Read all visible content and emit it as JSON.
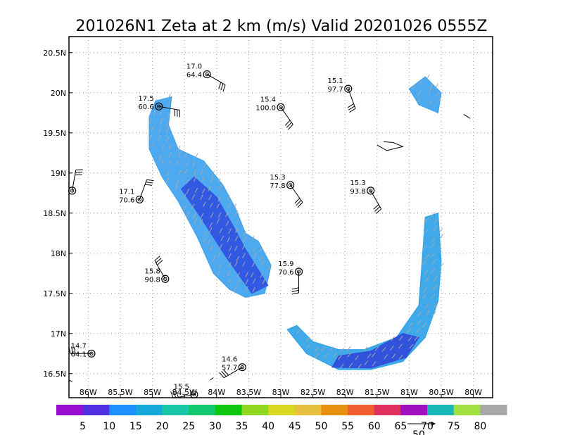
{
  "chart_data": {
    "type": "map",
    "title": "201026N1 Zeta at 2 km (m/s) Valid 20201026 0555Z",
    "xlim": [
      -86.3,
      -79.7
    ],
    "ylim": [
      16.2,
      20.7
    ],
    "x_ticks": [
      {
        "value": -86.0,
        "label": "86W"
      },
      {
        "value": -85.5,
        "label": "85.5W"
      },
      {
        "value": -85.0,
        "label": "85W"
      },
      {
        "value": -84.5,
        "label": "84.5W"
      },
      {
        "value": -84.0,
        "label": "84W"
      },
      {
        "value": -83.5,
        "label": "83.5W"
      },
      {
        "value": -83.0,
        "label": "83W"
      },
      {
        "value": -82.5,
        "label": "82.5W"
      },
      {
        "value": -82.0,
        "label": "82W"
      },
      {
        "value": -81.5,
        "label": "81.5W"
      },
      {
        "value": -81.0,
        "label": "81W"
      },
      {
        "value": -80.5,
        "label": "80.5W"
      },
      {
        "value": -80.0,
        "label": "80W"
      }
    ],
    "y_ticks": [
      {
        "value": 16.5,
        "label": "16.5N"
      },
      {
        "value": 17.0,
        "label": "17N"
      },
      {
        "value": 17.5,
        "label": "17.5N"
      },
      {
        "value": 18.0,
        "label": "18N"
      },
      {
        "value": 18.5,
        "label": "18.5N"
      },
      {
        "value": 19.0,
        "label": "19N"
      },
      {
        "value": 19.5,
        "label": "19.5N"
      },
      {
        "value": 20.0,
        "label": "20N"
      },
      {
        "value": 20.5,
        "label": "20.5N"
      }
    ],
    "grid": true,
    "colorbar": {
      "labels": [
        "5",
        "10",
        "15",
        "20",
        "25",
        "30",
        "35",
        "40",
        "45",
        "50",
        "55",
        "60",
        "65",
        "70",
        "75",
        "80"
      ],
      "colors": [
        "#9a0ed0",
        "#5030e0",
        "#1e8fff",
        "#16a8d8",
        "#18c8a8",
        "#10c870",
        "#10c810",
        "#90d820",
        "#d8d820",
        "#e8c040",
        "#e89010",
        "#f06030",
        "#e03060",
        "#a010c0",
        "#18b8b8",
        "#a0e040",
        "#a8a8a8"
      ],
      "reference_vector": {
        "label": "50"
      }
    },
    "stations": [
      {
        "lon": -84.15,
        "lat": 20.23,
        "top": "17.0",
        "bottom": "64.4",
        "barb_dir": 120
      },
      {
        "lon": -84.9,
        "lat": 19.83,
        "top": "17.5",
        "bottom": "60.6",
        "barb_dir": 100
      },
      {
        "lon": -83.0,
        "lat": 19.82,
        "top": "15.4",
        "bottom": "100.0",
        "barb_dir": 145
      },
      {
        "lon": -81.95,
        "lat": 20.05,
        "top": "15.1",
        "bottom": "97.7",
        "barb_dir": 160
      },
      {
        "lon": -86.25,
        "lat": 18.78,
        "top": "",
        "bottom": "",
        "barb_dir": 10
      },
      {
        "lon": -85.2,
        "lat": 18.67,
        "top": "17.1",
        "bottom": "70.6",
        "barb_dir": 20
      },
      {
        "lon": -82.85,
        "lat": 18.85,
        "top": "15.3",
        "bottom": "77.8",
        "barb_dir": 145
      },
      {
        "lon": -81.6,
        "lat": 18.78,
        "top": "15.3",
        "bottom": "93.8",
        "barb_dir": 150
      },
      {
        "lon": -84.8,
        "lat": 17.68,
        "top": "15.8",
        "bottom": "90.8",
        "barb_dir": 330
      },
      {
        "lon": -82.72,
        "lat": 17.77,
        "top": "15.9",
        "bottom": "70.6",
        "barb_dir": 180
      },
      {
        "lon": -85.95,
        "lat": 16.75,
        "top": "14.7",
        "bottom": "64.1",
        "barb_dir": 270
      },
      {
        "lon": -83.6,
        "lat": 16.58,
        "top": "14.6",
        "bottom": "57.7",
        "barb_dir": 240
      },
      {
        "lon": -84.35,
        "lat": 16.24,
        "top": "15.5",
        "bottom": "",
        "barb_dir": 260
      }
    ],
    "wind_band_north": [
      [
        -84.95,
        19.9
      ],
      [
        -84.7,
        19.95
      ],
      [
        -84.75,
        19.6
      ],
      [
        -84.6,
        19.3
      ],
      [
        -84.2,
        19.15
      ],
      [
        -83.9,
        18.85
      ],
      [
        -83.7,
        18.55
      ],
      [
        -83.55,
        18.25
      ],
      [
        -83.35,
        18.15
      ],
      [
        -83.15,
        17.85
      ],
      [
        -83.25,
        17.5
      ],
      [
        -83.55,
        17.45
      ],
      [
        -83.8,
        17.55
      ],
      [
        -84.05,
        17.75
      ],
      [
        -84.3,
        18.2
      ],
      [
        -84.6,
        18.65
      ],
      [
        -84.85,
        18.95
      ],
      [
        -85.05,
        19.3
      ],
      [
        -85.05,
        19.7
      ]
    ],
    "wind_band_core": [
      [
        -84.35,
        18.95
      ],
      [
        -84.0,
        18.7
      ],
      [
        -83.75,
        18.35
      ],
      [
        -83.55,
        18.05
      ],
      [
        -83.2,
        17.6
      ],
      [
        -83.45,
        17.5
      ],
      [
        -83.85,
        17.95
      ],
      [
        -84.25,
        18.45
      ],
      [
        -84.55,
        18.8
      ]
    ],
    "wind_band_south": [
      [
        -82.9,
        17.05
      ],
      [
        -82.6,
        16.75
      ],
      [
        -82.1,
        16.55
      ],
      [
        -81.6,
        16.55
      ],
      [
        -81.1,
        16.65
      ],
      [
        -80.75,
        16.95
      ],
      [
        -80.55,
        17.4
      ],
      [
        -80.5,
        17.9
      ],
      [
        -80.55,
        18.5
      ],
      [
        -80.75,
        18.45
      ],
      [
        -80.8,
        17.9
      ],
      [
        -80.85,
        17.35
      ],
      [
        -81.2,
        16.95
      ],
      [
        -81.7,
        16.8
      ],
      [
        -82.1,
        16.8
      ],
      [
        -82.5,
        16.9
      ],
      [
        -82.75,
        17.1
      ]
    ],
    "wind_band_south_core": [
      [
        -82.2,
        16.58
      ],
      [
        -81.6,
        16.57
      ],
      [
        -81.05,
        16.7
      ],
      [
        -80.85,
        16.95
      ],
      [
        -81.1,
        17.0
      ],
      [
        -81.6,
        16.78
      ],
      [
        -82.1,
        16.72
      ]
    ],
    "wind_band_east": [
      [
        -80.75,
        20.2
      ],
      [
        -80.5,
        20.0
      ],
      [
        -80.55,
        19.75
      ],
      [
        -80.85,
        19.85
      ],
      [
        -81.0,
        20.05
      ]
    ],
    "coastlines": [
      [
        [
          -81.5,
          19.35
        ],
        [
          -81.35,
          19.28
        ],
        [
          -81.25,
          19.3
        ],
        [
          -81.1,
          19.33
        ],
        [
          -81.25,
          19.38
        ],
        [
          -81.4,
          19.39
        ]
      ],
      [
        [
          -80.15,
          19.73
        ],
        [
          -80.05,
          19.68
        ]
      ],
      [
        [
          -84.1,
          16.42
        ],
        [
          -84.05,
          16.45
        ]
      ],
      [
        [
          -86.3,
          16.42
        ],
        [
          -86.25,
          16.4
        ]
      ]
    ]
  }
}
